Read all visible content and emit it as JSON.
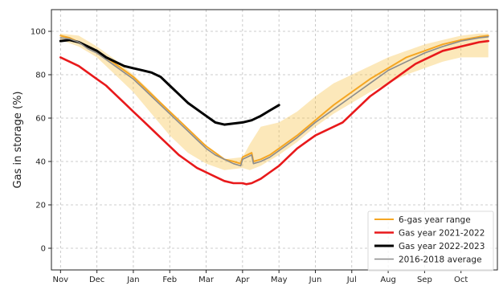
{
  "chart_data": {
    "type": "line",
    "xlabel": "",
    "ylabel": "Gas in storage (%)",
    "xlim": [
      -0.25,
      12
    ],
    "ylim": [
      -10,
      110
    ],
    "grid": true,
    "legend_position": "bottom-right",
    "x_ticks": [
      {
        "pos": 0,
        "label": "Nov"
      },
      {
        "pos": 1,
        "label": "Dec"
      },
      {
        "pos": 2,
        "label": "Jan"
      },
      {
        "pos": 3,
        "label": "Feb"
      },
      {
        "pos": 4,
        "label": "Mar"
      },
      {
        "pos": 5,
        "label": "Apr"
      },
      {
        "pos": 6,
        "label": "May"
      },
      {
        "pos": 7,
        "label": "Jun"
      },
      {
        "pos": 8,
        "label": "Jul"
      },
      {
        "pos": 9,
        "label": "Aug"
      },
      {
        "pos": 10,
        "label": "Sep"
      },
      {
        "pos": 11,
        "label": "Oct"
      }
    ],
    "y_ticks": [
      0,
      20,
      40,
      60,
      80,
      100
    ],
    "range_band": {
      "name": "6-gas year range",
      "color": "#f6c24a",
      "x": [
        0,
        0.5,
        1,
        1.5,
        2,
        2.5,
        3,
        3.5,
        4,
        4.5,
        5,
        5.2,
        5.5,
        6,
        6.5,
        7,
        7.5,
        8,
        8.5,
        9,
        9.5,
        10,
        10.5,
        11,
        11.5,
        11.75
      ],
      "upper": [
        99,
        98,
        93,
        87,
        80,
        72,
        63,
        54,
        46,
        41,
        42,
        48,
        56,
        58,
        63,
        70,
        76,
        80,
        84,
        88,
        91,
        94,
        96,
        98,
        99,
        99
      ],
      "lower": [
        96,
        93,
        88,
        80,
        72,
        62,
        52,
        44,
        39,
        36,
        37,
        36,
        38,
        43,
        49,
        56,
        62,
        67,
        72,
        76,
        80,
        83,
        86,
        88,
        88,
        88
      ]
    },
    "series": [
      {
        "name": "6-gas year range",
        "color": "#f5a623",
        "width": 2,
        "x": [
          0,
          0.25,
          0.5,
          0.75,
          1,
          1.25,
          1.5,
          1.75,
          2,
          2.25,
          2.5,
          2.75,
          3,
          3.25,
          3.5,
          3.75,
          4,
          4.25,
          4.5,
          4.75,
          4.95,
          5.0,
          5.25,
          5.3,
          5.5,
          5.75,
          6,
          6.5,
          7,
          7.5,
          8,
          8.5,
          9,
          9.5,
          10,
          10.5,
          11,
          11.5,
          11.75
        ],
        "values": [
          98,
          97,
          95,
          93,
          91,
          88,
          85,
          82,
          79,
          75,
          71,
          67,
          63,
          59,
          55,
          51,
          47,
          44,
          41,
          40,
          39,
          42,
          44,
          40,
          41,
          43,
          46,
          52,
          59,
          66,
          72,
          78,
          83,
          88,
          91,
          94,
          96,
          97.5,
          98
        ]
      },
      {
        "name": "Gas year 2021-2022",
        "color": "#e8191b",
        "width": 2.6,
        "x": [
          0,
          0.25,
          0.5,
          0.75,
          1,
          1.25,
          1.5,
          1.75,
          2,
          2.25,
          2.5,
          2.75,
          3,
          3.25,
          3.5,
          3.75,
          4,
          4.25,
          4.5,
          4.75,
          5,
          5.1,
          5.25,
          5.5,
          5.75,
          6,
          6.25,
          6.5,
          6.75,
          7,
          7.25,
          7.5,
          7.75,
          8,
          8.25,
          8.5,
          8.75,
          9,
          9.25,
          9.5,
          9.75,
          10,
          10.25,
          10.5,
          10.75,
          11,
          11.25,
          11.5,
          11.75
        ],
        "values": [
          88,
          86,
          84,
          81,
          78,
          75,
          71,
          67,
          63,
          59,
          55,
          51,
          47,
          43,
          40,
          37,
          35,
          33,
          31,
          30,
          30,
          29.5,
          30,
          32,
          35,
          38,
          42,
          46,
          49,
          52,
          54,
          56,
          58,
          62,
          66,
          70,
          73,
          76,
          79,
          82,
          85,
          87,
          89,
          91,
          92,
          93,
          94,
          95,
          95.5
        ]
      },
      {
        "name": "Gas year 2022-2023",
        "color": "#000000",
        "width": 3,
        "x": [
          0,
          0.25,
          0.5,
          0.75,
          1,
          1.25,
          1.5,
          1.75,
          2,
          2.25,
          2.5,
          2.75,
          3,
          3.25,
          3.5,
          3.75,
          4,
          4.25,
          4.5,
          4.75,
          5,
          5.25,
          5.5,
          5.75,
          6
        ],
        "values": [
          95.5,
          96,
          95,
          93,
          91,
          88,
          86,
          84,
          83,
          82,
          81,
          79,
          75,
          71,
          67,
          64,
          61,
          58,
          57,
          57.5,
          58,
          59,
          61,
          63.5,
          66
        ]
      },
      {
        "name": "2016-2018 average",
        "color": "#8c8c8c",
        "width": 1.6,
        "x": [
          0,
          0.25,
          0.5,
          0.75,
          1,
          1.25,
          1.5,
          1.75,
          2,
          2.25,
          2.5,
          2.75,
          3,
          3.25,
          3.5,
          3.75,
          4,
          4.25,
          4.5,
          4.75,
          4.95,
          5.0,
          5.25,
          5.3,
          5.5,
          5.75,
          6,
          6.5,
          7,
          7.5,
          8,
          8.5,
          9,
          9.5,
          10,
          10.5,
          11,
          11.5,
          11.75
        ],
        "values": [
          97,
          96.5,
          95,
          92,
          90,
          87,
          84,
          81,
          78,
          74,
          70,
          66,
          62,
          58,
          54,
          50,
          46,
          43,
          41,
          39,
          38,
          41,
          43,
          39,
          40,
          42,
          45,
          51,
          58,
          64,
          70,
          76,
          82,
          86,
          90,
          93,
          95.5,
          97,
          97.5
        ]
      }
    ]
  }
}
